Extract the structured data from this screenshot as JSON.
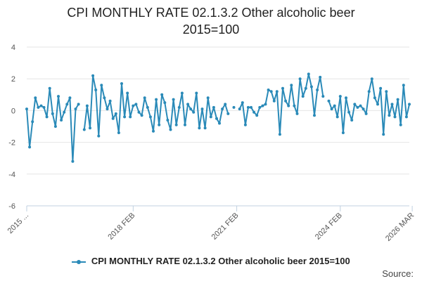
{
  "chart_data": {
    "type": "line",
    "title_line1": "CPI MONTHLY RATE 02.1.3.2 Other alcoholic beer",
    "title_line2": "2015=100",
    "xlabel": "",
    "ylabel": "",
    "ylim": [
      -6,
      4
    ],
    "yticks": [
      4,
      2,
      0,
      -2,
      -4,
      -6
    ],
    "xtick_labels": [
      "2015 ...",
      "2018 FEB",
      "2021 FEB",
      "2024 FEB",
      "2026 MAR"
    ],
    "xtick_index": [
      0,
      37,
      73,
      109,
      134
    ],
    "grid": true,
    "legend_position": "bottom",
    "series": [
      {
        "name": "CPI MONTHLY RATE 02.1.3.2 Other alcoholic beer 2015=100",
        "color": "#2a8ab8",
        "values": [
          0.1,
          -2.3,
          -0.7,
          0.8,
          0.2,
          0.3,
          0.2,
          -0.4,
          1.4,
          -0.2,
          -1.0,
          0.9,
          -0.6,
          -0.1,
          0.4,
          0.8,
          -3.2,
          0.1,
          0.4,
          null,
          -1.2,
          0.3,
          -1.1,
          2.2,
          1.3,
          -1.6,
          1.6,
          0.8,
          0.1,
          0.6,
          -0.5,
          -0.2,
          -1.4,
          1.7,
          -0.4,
          1.1,
          -0.4,
          0.3,
          0.4,
          -0.1,
          -0.3,
          0.8,
          0.2,
          -0.4,
          -1.3,
          0.7,
          -0.9,
          1.0,
          0.5,
          -0.6,
          -1.2,
          0.7,
          -0.9,
          0.2,
          1.1,
          -0.9,
          0.4,
          0.1,
          -0.1,
          1.1,
          -1.1,
          0.1,
          -1.1,
          0.8,
          -0.4,
          0.2,
          -0.5,
          -0.8,
          0.1,
          0.4,
          -0.2,
          null,
          0.2,
          null,
          0.1,
          0.5,
          -0.9,
          0.2,
          0.2,
          -0.1,
          -0.3,
          0.2,
          0.3,
          0.4,
          1.3,
          1.2,
          0.6,
          1.2,
          -1.5,
          1.4,
          0.6,
          0.3,
          1.6,
          0.3,
          -0.2,
          2.0,
          0.9,
          1.4,
          2.3,
          1.5,
          -0.3,
          1.3,
          2.1,
          0.9,
          null,
          0.6,
          0.1,
          0.3,
          -0.4,
          0.9,
          -1.4,
          0.8,
          -0.1,
          -0.6,
          0.4,
          0.2,
          0.3,
          0.1,
          -0.2,
          1.2,
          2.0,
          0.8,
          0.4,
          1.4,
          -1.5,
          1.2,
          -0.3,
          0.4,
          -0.4,
          0.7,
          -0.9,
          1.6,
          -0.4,
          0.4
        ]
      }
    ]
  },
  "source_label": "Source:"
}
